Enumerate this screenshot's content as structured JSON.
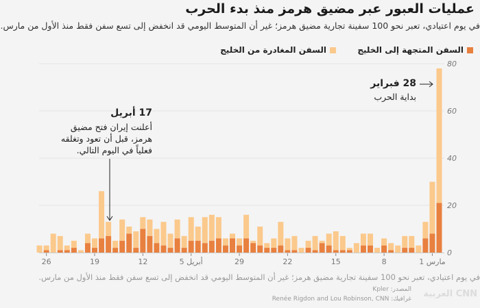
{
  "header": {
    "title": "عمليات العبور عبر مضيق هرمز منذ بدء الحرب",
    "subtitle": "في يوم اعتيادي، تعبر نحو 100 سفينة تجارية مضيق هرمز؛ غير أن المتوسط اليومي قد انخفض إلى تسع سفن فقط منذ الأول من مارس."
  },
  "legend": [
    {
      "label": "السفن المتجهة إلى الخليج",
      "color": "#e8803f"
    },
    {
      "label": "السفن المغادرة من الخليج",
      "color": "#fbc98c"
    }
  ],
  "annotations": [
    {
      "date": "28 فبراير",
      "text": "بداية الحرب"
    },
    {
      "date": "17 أبريل",
      "lines": [
        "أعلنت إيران فتح مضيق",
        "هرمز، قبل أن تعود وتغلقه",
        "فعلياً في اليوم التالي."
      ]
    }
  ],
  "chart_data": {
    "type": "bar",
    "stacked": true,
    "direction": "right-to-left",
    "x": [
      "02-28",
      "03-01",
      "03-02",
      "03-03",
      "03-04",
      "03-05",
      "03-06",
      "03-07",
      "03-08",
      "03-09",
      "03-10",
      "03-11",
      "03-12",
      "03-13",
      "03-14",
      "03-15",
      "03-16",
      "03-17",
      "03-18",
      "03-19",
      "03-20",
      "03-21",
      "03-22",
      "03-23",
      "03-24",
      "03-25",
      "03-26",
      "03-27",
      "03-28",
      "03-29",
      "03-30",
      "03-31",
      "04-01",
      "04-02",
      "04-03",
      "04-04",
      "04-05",
      "04-06",
      "04-07",
      "04-08",
      "04-09",
      "04-10",
      "04-11",
      "04-12",
      "04-13",
      "04-14",
      "04-15",
      "04-16",
      "04-17",
      "04-18",
      "04-19",
      "04-20",
      "04-21",
      "04-22",
      "04-23",
      "04-24",
      "04-25",
      "04-26",
      "04-27"
    ],
    "series": [
      {
        "name": "السفن المتجهة إلى الخليج",
        "color": "#e8803f",
        "values": [
          21,
          8,
          6,
          0,
          2,
          2,
          0,
          1,
          3,
          0,
          3,
          3,
          0,
          1,
          1,
          1,
          3,
          4,
          1,
          2,
          0,
          1,
          1,
          3,
          2,
          2,
          3,
          4,
          6,
          3,
          6,
          3,
          6,
          5,
          4,
          5,
          5,
          2,
          6,
          2,
          3,
          4,
          7,
          10,
          2,
          8,
          5,
          2,
          7,
          6,
          2,
          4,
          0,
          2,
          1,
          1,
          0,
          1,
          0
        ]
      },
      {
        "name": "السفن المغادرة من الخليج",
        "color": "#fbc98c",
        "values": [
          57,
          22,
          7,
          3,
          5,
          5,
          3,
          3,
          3,
          2,
          5,
          5,
          4,
          1,
          6,
          8,
          5,
          1,
          6,
          3,
          2,
          6,
          5,
          10,
          4,
          2,
          8,
          1,
          10,
          3,
          2,
          3,
          9,
          11,
          11,
          6,
          10,
          5,
          8,
          6,
          10,
          6,
          7,
          5,
          7,
          3,
          9,
          3,
          6,
          20,
          4,
          4,
          1,
          3,
          2,
          6,
          8,
          2,
          3
        ]
      }
    ],
    "ylim": [
      0,
      80
    ],
    "yticks": [
      "0",
      "20",
      "40",
      "60",
      "80"
    ],
    "xticks": [
      {
        "x": "03-01",
        "label": "1 مارس"
      },
      {
        "x": "03-08",
        "label": "8"
      },
      {
        "x": "03-15",
        "label": "15"
      },
      {
        "x": "03-22",
        "label": "22"
      },
      {
        "x": "03-29",
        "label": "29"
      },
      {
        "x": "04-05",
        "label": "5 أبريل"
      },
      {
        "x": "04-12",
        "label": "12"
      },
      {
        "x": "04-19",
        "label": "19"
      },
      {
        "x": "04-26",
        "label": "26"
      }
    ],
    "grid": true,
    "legend_position": "top"
  },
  "footer": {
    "note": "في يوم اعتيادي، تعبر نحو 100 سفينة تجارية مضيق هرمز؛ غير أن المتوسط اليومي قد انخفض إلى تسع سفن فقط منذ الأول من مارس.",
    "source": "المصدر: Kpler",
    "credit": "غرافيك: Renée Rigdon and Lou Robinson, CNN",
    "logo": "CNN العربية"
  }
}
